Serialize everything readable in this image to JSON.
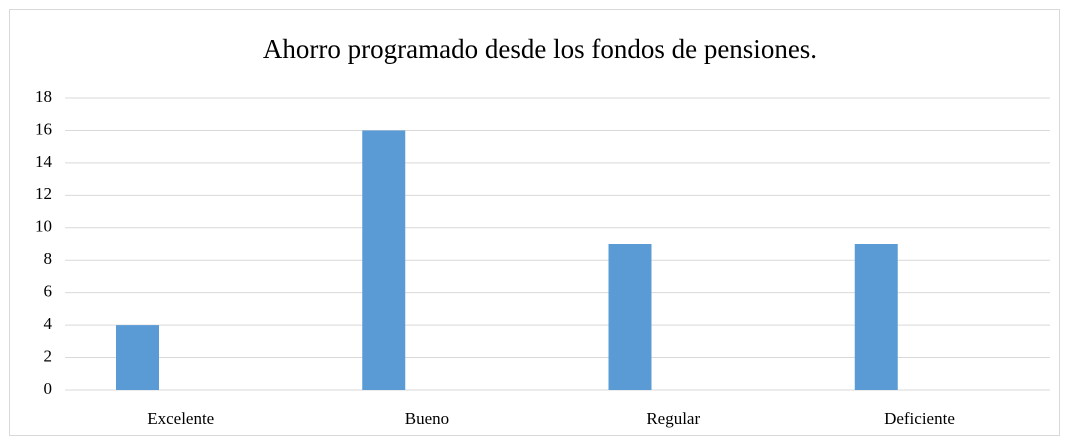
{
  "chart_data": {
    "type": "bar",
    "title": "Ahorro programado desde los fondos de pensiones.",
    "categories": [
      "Excelente",
      "Bueno",
      "Regular",
      "Deficiente"
    ],
    "values": [
      4,
      16,
      9,
      9
    ],
    "color": "#5b9bd5",
    "ylim": [
      0,
      18
    ],
    "yticks": [
      0,
      2,
      4,
      6,
      8,
      10,
      12,
      14,
      16,
      18
    ],
    "grid": true
  }
}
